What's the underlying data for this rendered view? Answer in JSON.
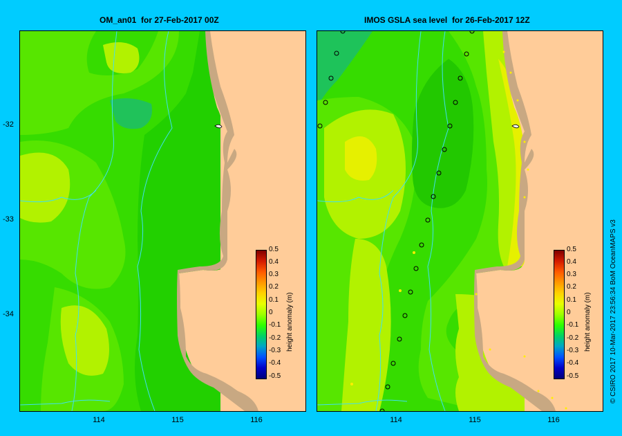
{
  "left_panel": {
    "title": "OM_an01  for 27-Feb-2017 00Z"
  },
  "right_panel": {
    "title": "IMOS GSLA sea level  for 26-Feb-2017 12Z"
  },
  "y_ticks": [
    "-32",
    "-33",
    "-34"
  ],
  "x_ticks": [
    "114",
    "115",
    "116"
  ],
  "colorbar": {
    "labels": [
      "0.5",
      "0.4",
      "0.3",
      "0.2",
      "0.1",
      "0",
      "-0.1",
      "-0.2",
      "-0.3",
      "-0.4",
      "-0.5"
    ],
    "title": "height anomaly (m)"
  },
  "credit": "© CSIRO 2017   10-Mar-2017 23:56:34 BoM OceanMAPS v3",
  "colors": {
    "background": "#00ccff",
    "land": "#ffcc99",
    "coast_shelf": "#c8a882",
    "bathymetry_contour": "#40e0f0"
  }
}
